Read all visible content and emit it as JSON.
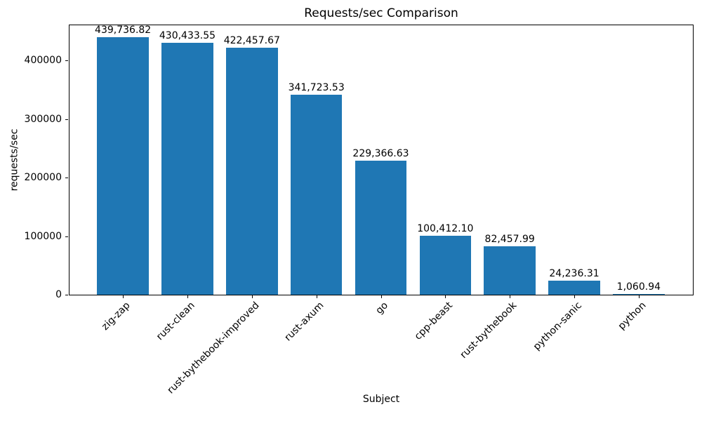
{
  "chart_data": {
    "type": "bar",
    "title": "Requests/sec Comparison",
    "xlabel": "Subject",
    "ylabel": "requests/sec",
    "categories": [
      "zig-zap",
      "rust-clean",
      "rust-bythebook-improved",
      "rust-axum",
      "go",
      "cpp-beast",
      "rust-bythebook",
      "python-sanic",
      "python"
    ],
    "values": [
      439736.82,
      430433.55,
      422457.67,
      341723.53,
      229366.63,
      100412.1,
      82457.99,
      24236.31,
      1060.94
    ],
    "value_labels": [
      "439,736.82",
      "430,433.55",
      "422,457.67",
      "341,723.53",
      "229,366.63",
      "100,412.10",
      "82,457.99",
      "24,236.31",
      "1,060.94"
    ],
    "ytick_labels": [
      "0",
      "100000",
      "200000",
      "300000",
      "400000"
    ],
    "yticks": [
      0,
      100000,
      200000,
      300000,
      400000
    ],
    "ylim": [
      0,
      461723.66
    ],
    "xlim": [
      -0.84,
      8.84
    ],
    "bar_width": 0.8,
    "bar_color": "#1f77b4",
    "grid": false,
    "legend_position": "none",
    "background_color": "#ffffff",
    "text_color": "#000000"
  }
}
